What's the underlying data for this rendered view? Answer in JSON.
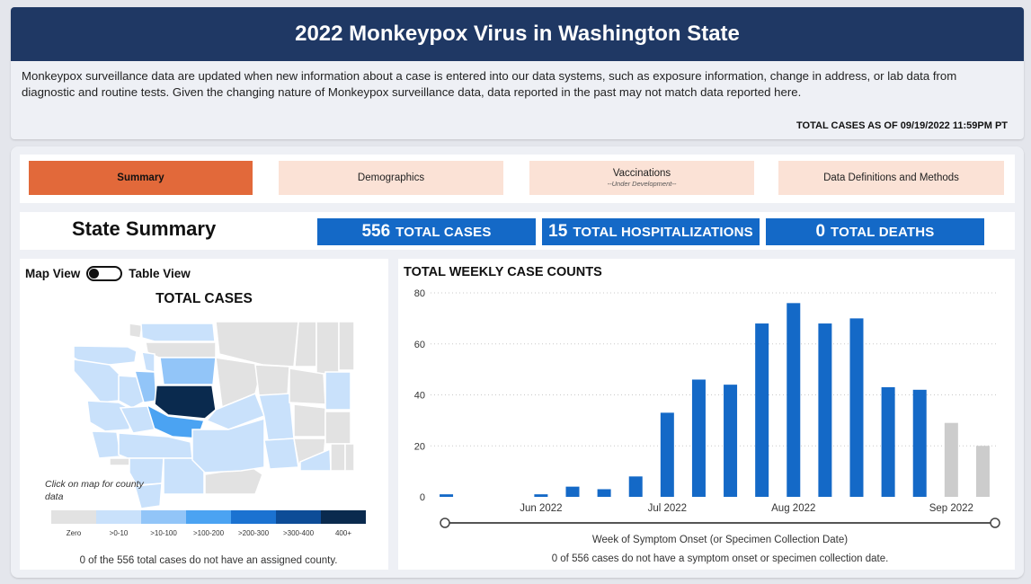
{
  "header": {
    "title": "2022 Monkeypox Virus in Washington State",
    "notice": "Monkeypox surveillance data are updated when new information about a case is entered into our data systems, such as exposure information, change in address, or lab data from diagnostic and routine tests. Given the changing nature of Monkeypox surveillance data, data reported in the past may not match data reported here.",
    "as_of": "TOTAL CASES AS OF 09/19/2022 11:59PM PT"
  },
  "tabs": [
    {
      "label": "Summary",
      "sub": ""
    },
    {
      "label": "Demographics",
      "sub": ""
    },
    {
      "label": "Vaccinations",
      "sub": "--Under Development--"
    },
    {
      "label": "Data Definitions and Methods",
      "sub": ""
    }
  ],
  "summary": {
    "title": "State Summary",
    "cases_num": "556",
    "cases_label": "TOTAL CASES",
    "hosp_num": "15",
    "hosp_label": "TOTAL HOSPITALIZATIONS",
    "deaths_num": "0",
    "deaths_label": "TOTAL DEATHS"
  },
  "map": {
    "toggle_left": "Map View",
    "toggle_right": "Table View",
    "title": "TOTAL CASES",
    "hint": "Click on map for county data",
    "legend": [
      {
        "label": "Zero",
        "color": "#e2e2e2"
      },
      {
        "label": ">0-10",
        "color": "#c9e1fb"
      },
      {
        "label": ">10-100",
        "color": "#92c5f8"
      },
      {
        "label": ">100-200",
        "color": "#4ba3f2"
      },
      {
        "label": ">200-300",
        "color": "#1b72d1"
      },
      {
        "label": ">300-400",
        "color": "#0d4c97"
      },
      {
        "label": "400+",
        "color": "#0a2a4e"
      }
    ],
    "note": "0 of the 556 total cases do not have an assigned county."
  },
  "chart_data": {
    "type": "bar",
    "title": "TOTAL WEEKLY CASE COUNTS",
    "xlabel": "Week of Symptom Onset (or Specimen Collection Date)",
    "ylabel": "",
    "ylim": [
      0,
      80
    ],
    "yticks": [
      0,
      20,
      40,
      60,
      80
    ],
    "xticks": [
      {
        "label": "Jun 2022",
        "week": 3
      },
      {
        "label": "Jul 2022",
        "week": 7
      },
      {
        "label": "Aug 2022",
        "week": 11
      },
      {
        "label": "Sep 2022",
        "week": 16
      }
    ],
    "values": [
      1,
      0,
      0,
      1,
      4,
      3,
      8,
      33,
      46,
      44,
      68,
      76,
      68,
      70,
      43,
      42,
      29,
      20
    ],
    "colors": {
      "complete": "#1469c7",
      "incomplete": "#cccccc"
    },
    "incomplete_from_index": 16,
    "footnote": "0 of 556 cases do not have a symptom onset or specimen collection date."
  }
}
